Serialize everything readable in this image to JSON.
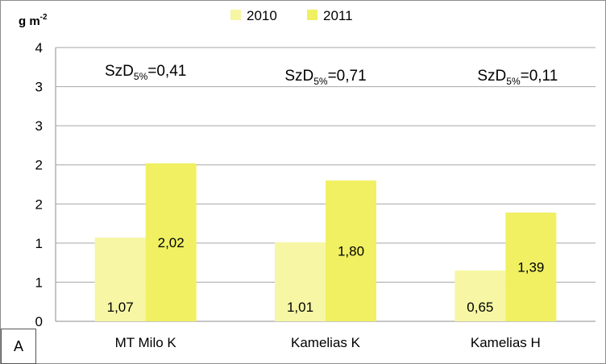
{
  "chart_data": {
    "type": "bar",
    "unit_label": "g m",
    "unit_exponent": "-2",
    "categories": [
      "MT Milo K",
      "Kamelias K",
      "Kamelias H"
    ],
    "series": [
      {
        "name": "2010",
        "values": [
          1.07,
          1.01,
          0.65
        ],
        "labels": [
          "1,07",
          "1,01",
          "0,65"
        ],
        "color": "#f6f6a4"
      },
      {
        "name": "2011",
        "values": [
          2.02,
          1.8,
          1.39
        ],
        "labels": [
          "2,02",
          "1,80",
          "1,39"
        ],
        "color": "#f0f062"
      }
    ],
    "y_ticks": [
      {
        "value": 0,
        "label": "0"
      },
      {
        "value": 0.5,
        "label": "1"
      },
      {
        "value": 1.0,
        "label": "1"
      },
      {
        "value": 1.5,
        "label": "2"
      },
      {
        "value": 2.0,
        "label": "2"
      },
      {
        "value": 2.5,
        "label": "3"
      },
      {
        "value": 3.0,
        "label": "3"
      },
      {
        "value": 3.5,
        "label": "4"
      }
    ],
    "ylim": [
      0,
      3.5
    ],
    "grid": true,
    "legend": "top-center",
    "annotations": [
      {
        "prefix": "SzD",
        "sub": "5%",
        "suffix": "=0,41"
      },
      {
        "prefix": "SzD",
        "sub": "5%",
        "suffix": "=0,71"
      },
      {
        "prefix": "SzD",
        "sub": "5%",
        "suffix": "=0,11"
      }
    ]
  },
  "panel_label": "A"
}
